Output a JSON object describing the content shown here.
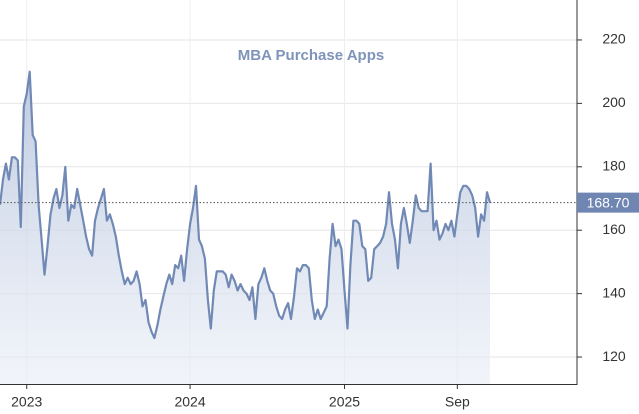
{
  "chart_data": {
    "type": "area",
    "title": "MBA Purchase Apps",
    "values": [
      168,
      176,
      181,
      176,
      183,
      183,
      182,
      161,
      199,
      203,
      210,
      190,
      188,
      168,
      157,
      146,
      155,
      165,
      170,
      173,
      167,
      171,
      180,
      163,
      168,
      167,
      173,
      168,
      163,
      158,
      154,
      152,
      163,
      167,
      170,
      173,
      163,
      165,
      162,
      158,
      152,
      147,
      143,
      145,
      143,
      144,
      147,
      143,
      136,
      138,
      131,
      128,
      126,
      130,
      135,
      139,
      143,
      146,
      143,
      149,
      148,
      152,
      144,
      154,
      162,
      167,
      174,
      157,
      155,
      151,
      138,
      129,
      141,
      147,
      147,
      147,
      146,
      142,
      146,
      144,
      141,
      143,
      141,
      140,
      138,
      142,
      132,
      143,
      145,
      148,
      144,
      141,
      140,
      136,
      133,
      132,
      135,
      137,
      132,
      139,
      148,
      147,
      149,
      149,
      148,
      138,
      132,
      135,
      132,
      134,
      136,
      151,
      162,
      155,
      157,
      154,
      141,
      129,
      149,
      163,
      163,
      162,
      155,
      154,
      144,
      145,
      154,
      155,
      156,
      158,
      162,
      172,
      162,
      157,
      148,
      162,
      167,
      162,
      156,
      163,
      171,
      167,
      166,
      166,
      166,
      181,
      160,
      163,
      157,
      159,
      162,
      160,
      163,
      158,
      165,
      172,
      174,
      174,
      173,
      171,
      167,
      158,
      165,
      163,
      172,
      168.7
    ],
    "color": "#7189b5",
    "xlim": [
      0,
      165
    ],
    "xticks": [
      {
        "value": 9,
        "label": "2023"
      },
      {
        "value": 64,
        "label": "2024"
      },
      {
        "value": 116,
        "label": "2025"
      },
      {
        "value": 154,
        "label": "Sep"
      }
    ],
    "ylim": [
      111.5,
      232.6
    ],
    "yticks": [
      120,
      140,
      160,
      180,
      200,
      220
    ],
    "grid": true,
    "annotation": {
      "value": 168.7,
      "label": "168.70"
    }
  }
}
